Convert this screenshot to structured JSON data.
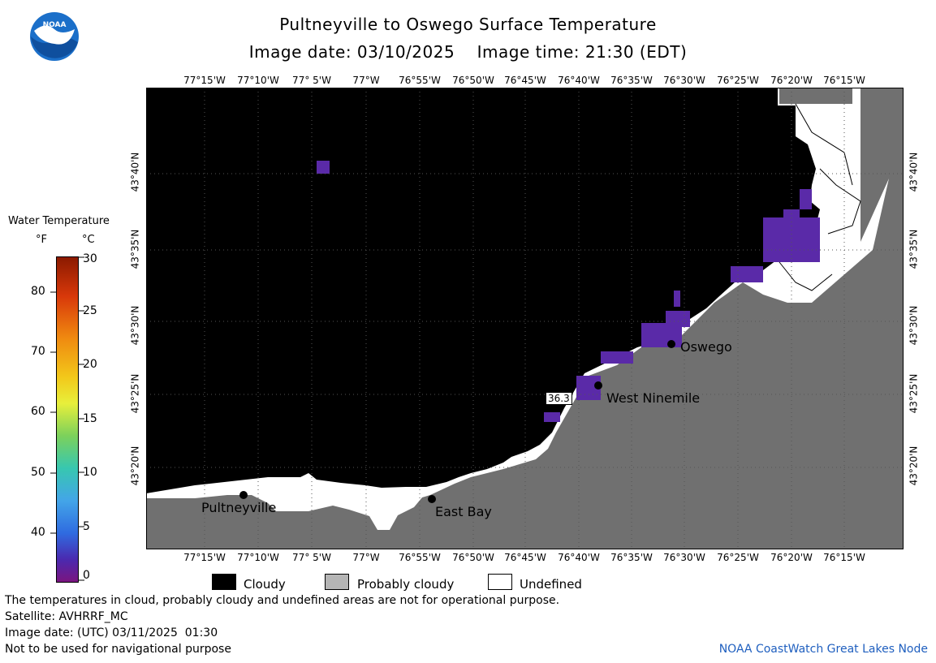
{
  "header": {
    "title": "Pultneyville to Oswego Surface Temperature",
    "subtitle": "Image date: 03/10/2025    Image time: 21:30 (EDT)"
  },
  "logo": {
    "name": "noaa-logo",
    "text": "NOAA"
  },
  "map": {
    "lon_labels": [
      "77°15'W",
      "77°10'W",
      "77° 5'W",
      "77°W",
      "76°55'W",
      "76°50'W",
      "76°45'W",
      "76°40'W",
      "76°35'W",
      "76°30'W",
      "76°25'W",
      "76°20'W",
      "76°15'W"
    ],
    "lat_labels": [
      "43°40'N",
      "43°35'N",
      "43°30'N",
      "43°25'N",
      "43°20'N"
    ],
    "cities": [
      {
        "name": "Pultneyville"
      },
      {
        "name": "East Bay"
      },
      {
        "name": "West Ninemile"
      },
      {
        "name": "Oswego"
      }
    ],
    "temp_readout": "36.3",
    "colors": {
      "cloudy": "#000000",
      "probably_cloudy": "#707070",
      "undefined": "#ffffff",
      "cold_water": "#5a2aa8"
    }
  },
  "legend": {
    "title": "Water Temperature",
    "unit_f": "°F",
    "unit_c": "°C",
    "f_ticks": [
      "80",
      "70",
      "60",
      "50",
      "40"
    ],
    "c_ticks": [
      "30",
      "25",
      "20",
      "15",
      "10",
      "5",
      "0"
    ]
  },
  "key": {
    "cloudy": "Cloudy",
    "probably_cloudy": "Probably cloudy",
    "undefined": "Undefined"
  },
  "footer": {
    "note": "The temperatures in cloud, probably cloudy and undefined areas are not for operational purpose.",
    "satellite": "Satellite: AVHRRF_MC",
    "image_date_utc": "Image date: (UTC) 03/11/2025  01:30",
    "nav_warning": "Not to be used for navigational purpose",
    "credit": "NOAA CoastWatch Great Lakes Node"
  }
}
